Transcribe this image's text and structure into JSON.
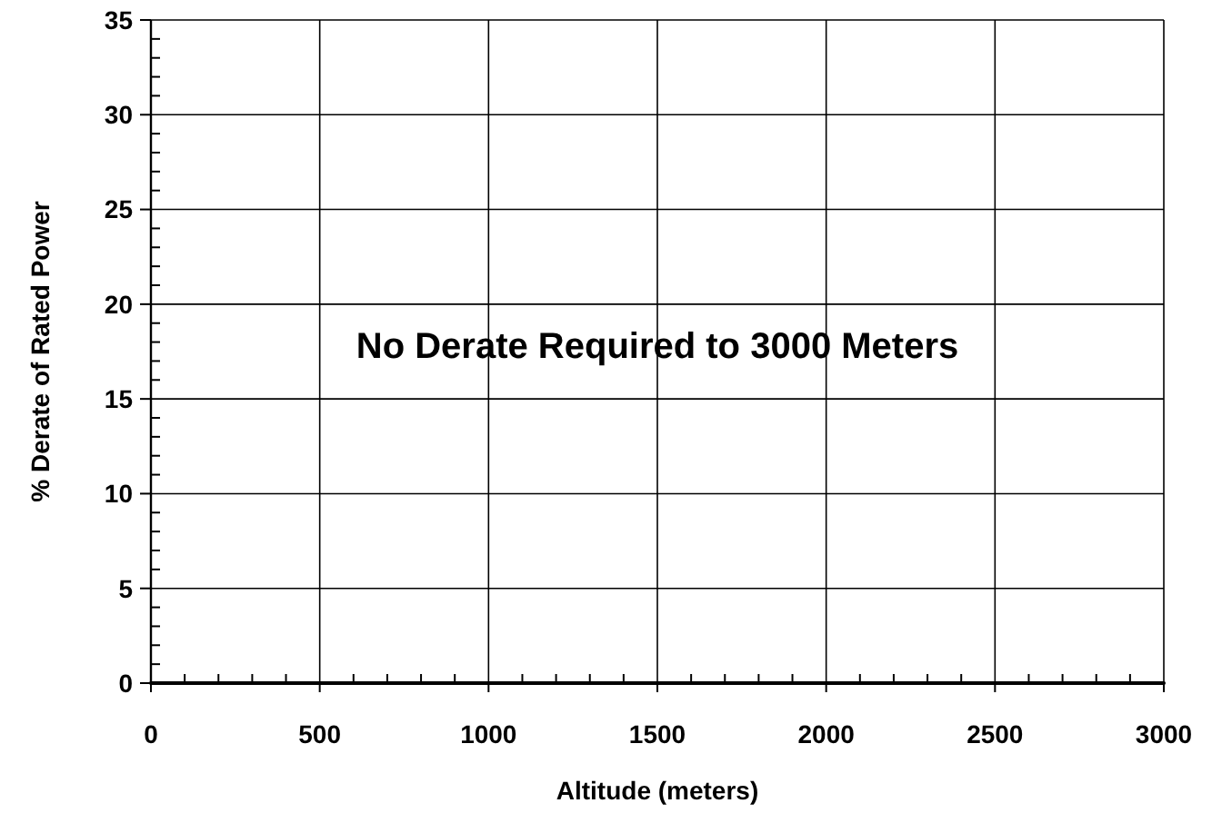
{
  "chart_data": {
    "type": "line",
    "xlabel": "Altitude (meters)",
    "ylabel": "% Derate of Rated Power",
    "annotations": [
      "No Derate Required to 3000 Meters"
    ],
    "x": [
      0,
      3000
    ],
    "series": [
      {
        "color": "#000000",
        "values": [
          0,
          0
        ]
      }
    ],
    "xlim": [
      0,
      3000
    ],
    "ylim": [
      0,
      35
    ],
    "xticks": [
      0,
      {
        "value": 100,
        "label": null
      },
      {
        "value": 200,
        "label": null
      },
      {
        "value": 300,
        "label": null
      },
      {
        "value": 400,
        "label": null
      },
      500,
      {
        "value": 600,
        "label": null
      },
      {
        "value": 700,
        "label": null
      },
      {
        "value": 800,
        "label": null
      },
      {
        "value": 900,
        "label": null
      },
      1000,
      {
        "value": 1100,
        "label": null
      },
      {
        "value": 1200,
        "label": null
      },
      {
        "value": 1300,
        "label": null
      },
      {
        "value": 1400,
        "label": null
      },
      1500,
      {
        "value": 1600,
        "label": null
      },
      {
        "value": 1700,
        "label": null
      },
      {
        "value": 1800,
        "label": null
      },
      {
        "value": 1900,
        "label": null
      },
      2000,
      {
        "value": 2100,
        "label": null
      },
      {
        "value": 2200,
        "label": null
      },
      {
        "value": 2300,
        "label": null
      },
      {
        "value": 2400,
        "label": null
      },
      2500,
      {
        "value": 2600,
        "label": null
      },
      {
        "value": 2700,
        "label": null
      },
      {
        "value": 2800,
        "label": null
      },
      {
        "value": 2900,
        "label": null
      },
      3000
    ],
    "yticks": [
      0,
      {
        "value": 1,
        "label": null
      },
      {
        "value": 2,
        "label": null
      },
      {
        "value": 3,
        "label": null
      },
      {
        "value": 4,
        "label": null
      },
      5,
      {
        "value": 6,
        "label": null
      },
      {
        "value": 7,
        "label": null
      },
      {
        "value": 8,
        "label": null
      },
      {
        "value": 9,
        "label": null
      },
      10,
      {
        "value": 11,
        "label": null
      },
      {
        "value": 12,
        "label": null
      },
      {
        "value": 13,
        "label": null
      },
      {
        "value": 14,
        "label": null
      },
      15,
      {
        "value": 16,
        "label": null
      },
      {
        "value": 17,
        "label": null
      },
      {
        "value": 18,
        "label": null
      },
      {
        "value": 19,
        "label": null
      },
      20,
      {
        "value": 21,
        "label": null
      },
      {
        "value": 22,
        "label": null
      },
      {
        "value": 23,
        "label": null
      },
      {
        "value": 24,
        "label": null
      },
      25,
      {
        "value": 26,
        "label": null
      },
      {
        "value": 27,
        "label": null
      },
      {
        "value": 28,
        "label": null
      },
      {
        "value": 29,
        "label": null
      },
      30,
      {
        "value": 31,
        "label": null
      },
      {
        "value": 32,
        "label": null
      },
      {
        "value": 33,
        "label": null
      },
      {
        "value": 34,
        "label": null
      },
      35
    ],
    "grid": true,
    "marker": "none",
    "line_style": "solid"
  }
}
